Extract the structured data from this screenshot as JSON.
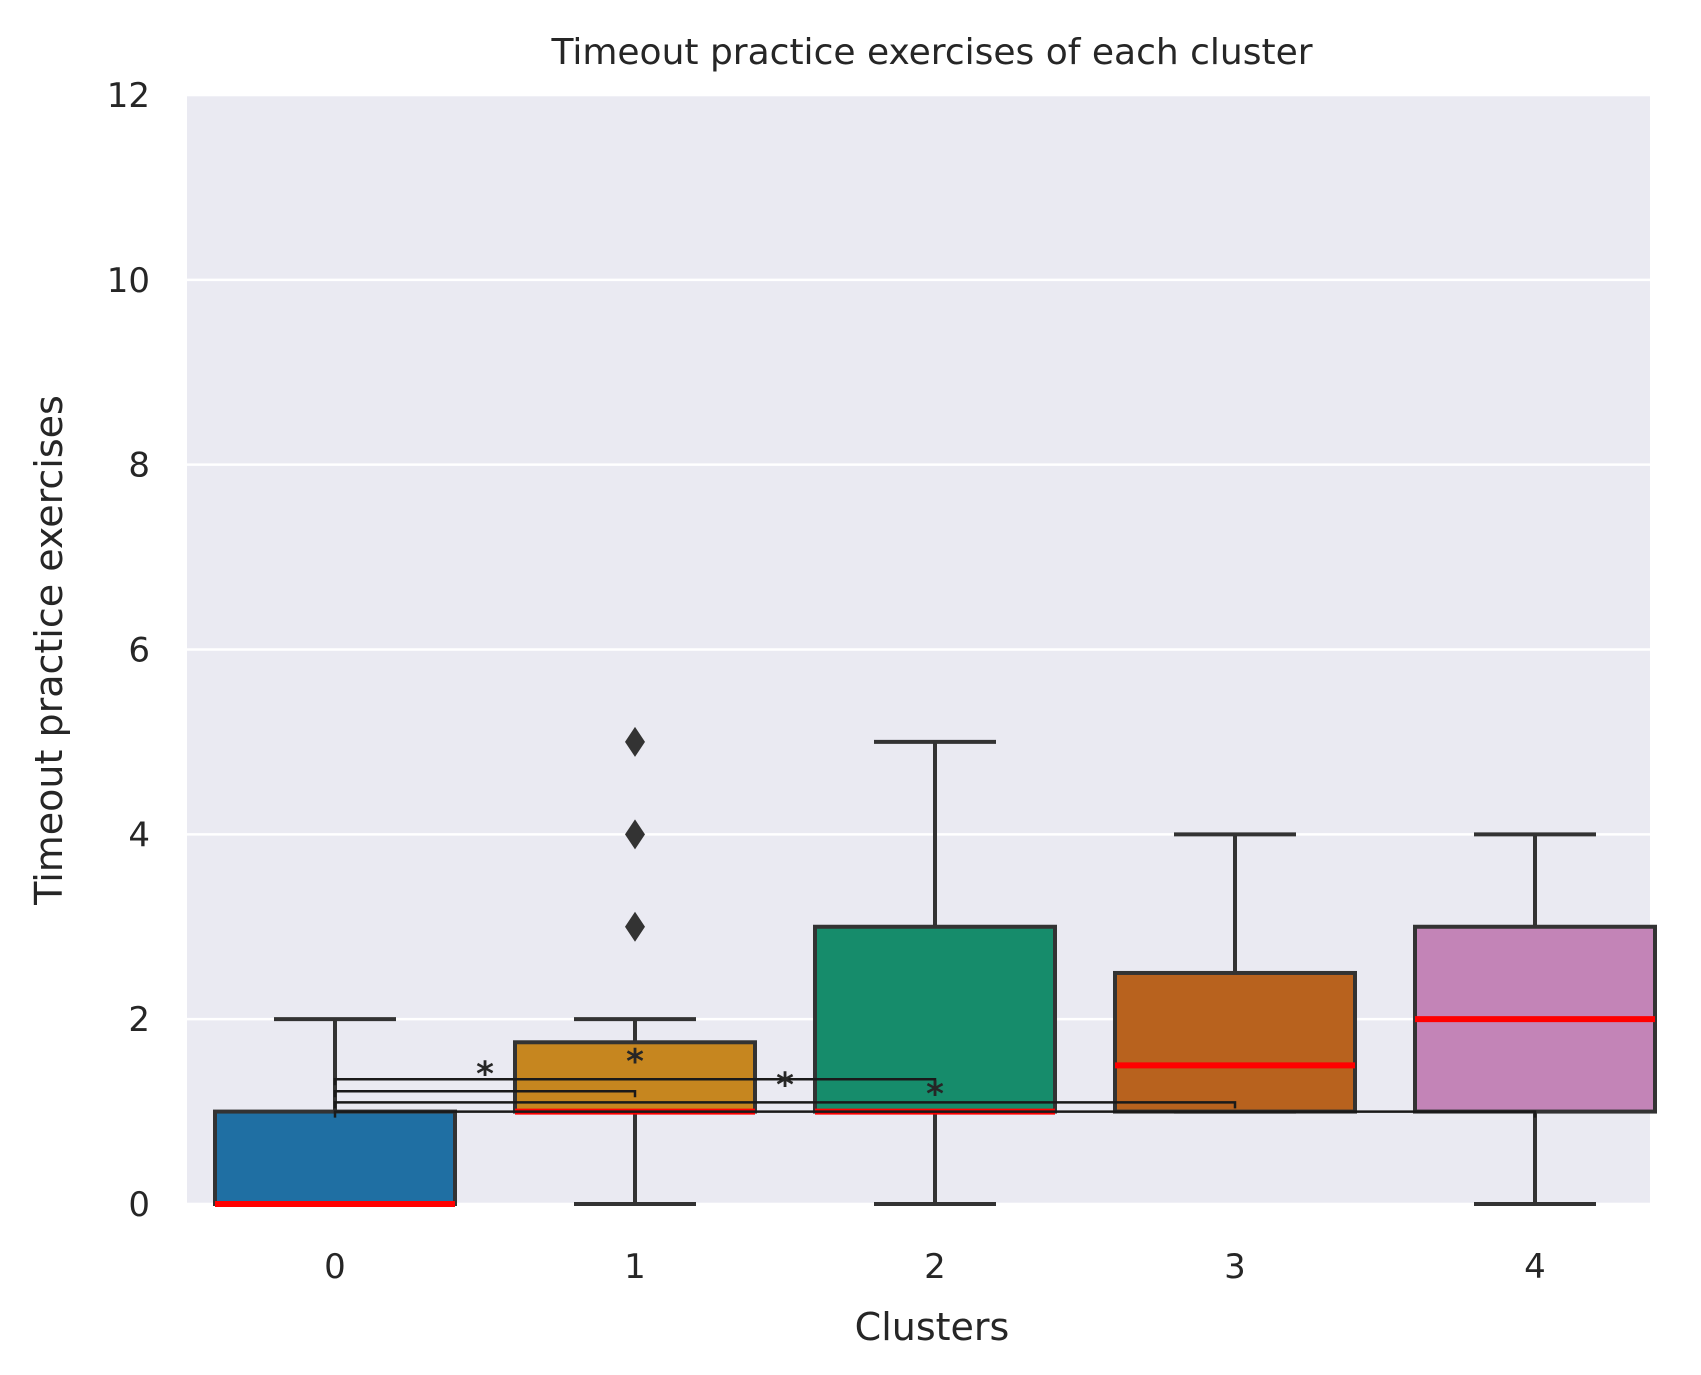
{
  "chart_data": {
    "type": "box",
    "title": "Timeout practice exercises of each cluster",
    "xlabel": "Clusters",
    "ylabel": "Timeout practice exercises",
    "categories": [
      "0",
      "1",
      "2",
      "3",
      "4"
    ],
    "ylim": [
      0,
      12
    ],
    "yticks": [
      "0",
      "2",
      "4",
      "6",
      "8",
      "10",
      "12"
    ],
    "grid": true,
    "boxes": [
      {
        "category": "0",
        "whisker_low": 0,
        "q1": 0,
        "median": 0,
        "q3": 1,
        "whisker_high": 2,
        "outliers": [],
        "color": "#1f6fa3"
      },
      {
        "category": "1",
        "whisker_low": 0,
        "q1": 1,
        "median": 1,
        "q3": 1.75,
        "whisker_high": 2,
        "outliers": [
          3,
          4,
          5
        ],
        "color": "#c6861f"
      },
      {
        "category": "2",
        "whisker_low": 0,
        "q1": 1,
        "median": 1,
        "q3": 3,
        "whisker_high": 5,
        "outliers": [],
        "color": "#168c6b"
      },
      {
        "category": "3",
        "whisker_low": 1,
        "q1": 1,
        "median": 1.5,
        "q3": 2.5,
        "whisker_high": 4,
        "outliers": [],
        "color": "#b8621e"
      },
      {
        "category": "4",
        "whisker_low": 0,
        "q1": 1,
        "median": 2,
        "q3": 3,
        "whisker_high": 4,
        "outliers": [],
        "color": "#c384b7"
      }
    ],
    "significance": [
      {
        "from": "0",
        "to": "1",
        "y": 1.22,
        "label": "*"
      },
      {
        "from": "0",
        "to": "2",
        "y": 1.35,
        "label": "*"
      },
      {
        "from": "0",
        "to": "3",
        "y": 1.1,
        "label": "*"
      },
      {
        "from": "0",
        "to": "4",
        "y": 1.0,
        "label": "*"
      }
    ],
    "colors": {
      "background": "#eaeaf2",
      "grid": "#ffffff",
      "edge": "#333333",
      "median": "#ff0000",
      "bracket": "#1a1a1a"
    }
  }
}
